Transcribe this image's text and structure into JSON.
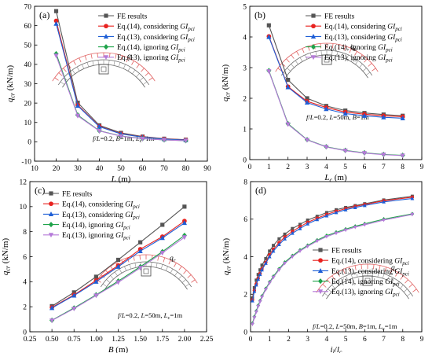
{
  "figure": {
    "colors": {
      "fe": "#555555",
      "eq14c": "#e8221f",
      "eq13c": "#1f5fd6",
      "eq14i": "#1fa34a",
      "eq13i": "#b57ad9",
      "arch": "#e06060"
    }
  },
  "chart_data": [
    {
      "panel_tag": "(a)",
      "type": "line",
      "xlabel_main": "L",
      "xlabel_unit": "(m)",
      "ylabel_main": "q",
      "ylabel_sub": "cr",
      "ylabel_unit": "(kN/m)",
      "xlim": [
        10,
        90
      ],
      "ylim": [
        -10,
        70
      ],
      "xticks": [
        10,
        20,
        30,
        40,
        50,
        60,
        70,
        80,
        90
      ],
      "yticks": [
        -10,
        0,
        10,
        20,
        30,
        40,
        50,
        60,
        70
      ],
      "legend_position": "top-right",
      "load_label_main": "q",
      "load_label_sub": "r",
      "annotation": "f/L=0.2, B=1m, Lc=1m",
      "ann_parts": [
        {
          "t": "f",
          "i": true
        },
        {
          "t": "/",
          "i": false
        },
        {
          "t": "L",
          "i": true
        },
        {
          "t": "=0.2, ",
          "i": false
        },
        {
          "t": "B",
          "i": true
        },
        {
          "t": "=1m, ",
          "i": false
        },
        {
          "t": "L",
          "i": true
        },
        {
          "t": "c",
          "i": false,
          "sub": true
        },
        {
          "t": "=1m",
          "i": false
        }
      ],
      "x": [
        20,
        30,
        40,
        50,
        60,
        70,
        80
      ],
      "series": [
        {
          "name": "FE results",
          "values": [
            67.5,
            20.2,
            8.5,
            4.6,
            2.7,
            1.6,
            1.1
          ]
        },
        {
          "name": "Eq.(14), considering GIpci",
          "values": [
            62.5,
            19.0,
            8.0,
            4.2,
            2.5,
            1.5,
            1.0
          ]
        },
        {
          "name": "Eq.(13), considering GIpci",
          "values": [
            61.0,
            18.6,
            7.8,
            4.1,
            2.4,
            1.4,
            0.9
          ]
        },
        {
          "name": "Eq.(14), ignoring GIpci",
          "values": [
            45.5,
            13.8,
            5.7,
            3.0,
            1.7,
            1.0,
            0.6
          ]
        },
        {
          "name": "Eq.(13), ignoring GIpci",
          "values": [
            44.5,
            13.4,
            5.6,
            2.9,
            1.6,
            1.0,
            0.6
          ]
        }
      ]
    },
    {
      "panel_tag": "(b)",
      "type": "line",
      "xlabel_main": "L",
      "xlabel_sub": "c",
      "xlabel_unit": "(m)",
      "ylabel_main": "q",
      "ylabel_sub": "cr",
      "ylabel_unit": "(kN/m)",
      "xlim": [
        0,
        9
      ],
      "ylim": [
        0,
        5
      ],
      "xticks": [
        0,
        1,
        2,
        3,
        4,
        5,
        6,
        7,
        8,
        9
      ],
      "yticks": [
        0,
        1,
        2,
        3,
        4,
        5
      ],
      "legend_position": "top-right",
      "load_label_main": "q",
      "load_label_sub": "r",
      "annotation": "f/L=0.2, L=50m, B=1m",
      "ann_parts": [
        {
          "t": "f",
          "i": true
        },
        {
          "t": "/",
          "i": false
        },
        {
          "t": "L",
          "i": true
        },
        {
          "t": "=0.2, ",
          "i": false
        },
        {
          "t": "L",
          "i": true
        },
        {
          "t": "=50m, ",
          "i": false
        },
        {
          "t": "B",
          "i": true
        },
        {
          "t": "=1m",
          "i": false
        }
      ],
      "x": [
        1,
        2,
        3,
        4,
        5,
        6,
        7,
        8
      ],
      "series": [
        {
          "name": "FE results",
          "values": [
            4.38,
            2.6,
            2.0,
            1.75,
            1.6,
            1.52,
            1.47,
            1.43
          ]
        },
        {
          "name": "Eq.(14), considering GIpci",
          "values": [
            4.02,
            2.38,
            1.9,
            1.7,
            1.55,
            1.48,
            1.43,
            1.4
          ]
        },
        {
          "name": "Eq.(13), considering GIpci",
          "values": [
            4.0,
            2.36,
            1.86,
            1.65,
            1.5,
            1.43,
            1.38,
            1.35
          ]
        },
        {
          "name": "Eq.(14), ignoring GIpci",
          "values": [
            2.9,
            1.17,
            0.65,
            0.42,
            0.3,
            0.22,
            0.17,
            0.14
          ]
        },
        {
          "name": "Eq.(13), ignoring GIpci",
          "values": [
            2.88,
            1.15,
            0.64,
            0.41,
            0.29,
            0.21,
            0.16,
            0.13
          ]
        }
      ]
    },
    {
      "panel_tag": "(c)",
      "type": "line",
      "xlabel_main": "B",
      "xlabel_unit": "(m)",
      "ylabel_main": "q",
      "ylabel_sub": "cr",
      "ylabel_unit": "(kN/m)",
      "xlim": [
        0.25,
        2.25
      ],
      "ylim": [
        0,
        12
      ],
      "xticks": [
        0.25,
        0.5,
        0.75,
        1.0,
        1.25,
        1.5,
        1.75,
        2.0,
        2.25
      ],
      "xtick_labels": [
        "0.25",
        "0.50",
        "0.75",
        "1.00",
        "1.25",
        "1.50",
        "1.75",
        "2.00",
        "2.25"
      ],
      "yticks": [
        0,
        2,
        4,
        6,
        8,
        10,
        12
      ],
      "legend_position": "top-left",
      "load_label_main": "q",
      "load_label_sub": "r",
      "annotation": "f/L=0.2, L=50m, Lc=1m",
      "ann_parts": [
        {
          "t": "f",
          "i": true
        },
        {
          "t": "/",
          "i": false
        },
        {
          "t": "L",
          "i": true
        },
        {
          "t": "=0.2, ",
          "i": false
        },
        {
          "t": "L",
          "i": true
        },
        {
          "t": "=50m, ",
          "i": false
        },
        {
          "t": "L",
          "i": true
        },
        {
          "t": "c",
          "i": false,
          "sub": true
        },
        {
          "t": "=1m",
          "i": false
        }
      ],
      "x": [
        0.5,
        0.75,
        1.0,
        1.25,
        1.5,
        1.75,
        2.0
      ],
      "series": [
        {
          "name": "FE results",
          "values": [
            2.05,
            3.15,
            4.4,
            5.75,
            7.15,
            8.55,
            10.0
          ]
        },
        {
          "name": "Eq.(14), considering GIpci",
          "values": [
            1.95,
            2.95,
            4.1,
            5.3,
            6.6,
            7.6,
            8.85
          ]
        },
        {
          "name": "Eq.(13), considering GIpci",
          "values": [
            1.9,
            2.9,
            4.0,
            5.2,
            6.45,
            7.5,
            8.7
          ]
        },
        {
          "name": "Eq.(14), ignoring GIpci",
          "values": [
            0.92,
            1.9,
            2.95,
            4.05,
            5.2,
            6.4,
            7.7
          ]
        },
        {
          "name": "Eq.(13), ignoring GIpci",
          "values": [
            0.9,
            1.85,
            2.9,
            3.95,
            5.1,
            6.3,
            7.55
          ]
        }
      ]
    },
    {
      "panel_tag": "(d)",
      "type": "line",
      "xlabel_main": "i",
      "xlabel_sub1": "l",
      "xlabel_sep": "/",
      "xlabel_main2": "l",
      "xlabel_sub2": "c",
      "ylabel_main": "q",
      "ylabel_sub": "cr",
      "ylabel_unit": "(kN/m)",
      "xlim": [
        0,
        9
      ],
      "ylim": [
        0,
        8
      ],
      "xticks": [
        0,
        1,
        2,
        3,
        4,
        5,
        6,
        7,
        8,
        9
      ],
      "yticks": [
        0,
        2,
        4,
        6,
        8
      ],
      "legend_position": "bottom-right",
      "load_label_main": "q",
      "load_label_sub": "r",
      "annotation": "f/L=0.2, L=50m, B=1m, Lc=1m",
      "ann_parts": [
        {
          "t": "f",
          "i": true
        },
        {
          "t": "/",
          "i": false
        },
        {
          "t": "L",
          "i": true
        },
        {
          "t": "=0.2, ",
          "i": false
        },
        {
          "t": "L",
          "i": true
        },
        {
          "t": "=50m, ",
          "i": false
        },
        {
          "t": "B",
          "i": true
        },
        {
          "t": "=1m, ",
          "i": false
        },
        {
          "t": "L",
          "i": true
        },
        {
          "t": "c",
          "i": false,
          "sub": true
        },
        {
          "t": "=1m",
          "i": false
        }
      ],
      "x": [
        0.1,
        0.2,
        0.3,
        0.4,
        0.5,
        0.6,
        0.8,
        1.0,
        1.2,
        1.5,
        1.8,
        2.2,
        2.6,
        3.0,
        3.5,
        4.0,
        4.5,
        5.0,
        5.5,
        6.0,
        7.0,
        8.5
      ],
      "series": [
        {
          "name": "FE results",
          "values": [
            1.8,
            2.35,
            2.75,
            3.05,
            3.3,
            3.55,
            3.9,
            4.3,
            4.6,
            4.95,
            5.2,
            5.5,
            5.72,
            5.95,
            6.15,
            6.35,
            6.5,
            6.62,
            6.72,
            6.82,
            7.02,
            7.22
          ]
        },
        {
          "name": "Eq.(14), considering GIpci",
          "values": [
            1.7,
            2.2,
            2.55,
            2.85,
            3.1,
            3.35,
            3.7,
            4.1,
            4.4,
            4.75,
            5.05,
            5.35,
            5.6,
            5.83,
            6.05,
            6.25,
            6.42,
            6.56,
            6.68,
            6.78,
            6.98,
            7.17
          ]
        },
        {
          "name": "Eq.(13), considering GIpci",
          "values": [
            1.65,
            2.15,
            2.5,
            2.8,
            3.05,
            3.3,
            3.65,
            4.0,
            4.3,
            4.65,
            4.95,
            5.25,
            5.5,
            5.75,
            5.98,
            6.18,
            6.35,
            6.5,
            6.62,
            6.73,
            6.92,
            7.1
          ]
        },
        {
          "name": "Eq.(14), ignoring GIpci",
          "values": [
            0.45,
            0.8,
            1.1,
            1.4,
            1.65,
            1.9,
            2.3,
            2.65,
            2.95,
            3.35,
            3.7,
            4.05,
            4.35,
            4.6,
            4.88,
            5.12,
            5.3,
            5.47,
            5.62,
            5.75,
            6.0,
            6.28
          ]
        },
        {
          "name": "Eq.(13), ignoring GIpci",
          "values": [
            0.4,
            0.75,
            1.05,
            1.35,
            1.6,
            1.85,
            2.25,
            2.6,
            2.9,
            3.3,
            3.65,
            4.0,
            4.3,
            4.55,
            4.83,
            5.07,
            5.25,
            5.42,
            5.57,
            5.7,
            5.95,
            6.25
          ]
        }
      ]
    }
  ]
}
